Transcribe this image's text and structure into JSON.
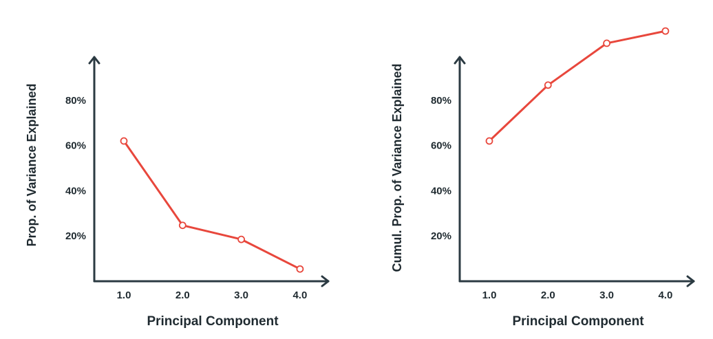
{
  "chart_data": [
    {
      "type": "line",
      "x": [
        1.0,
        2.0,
        3.0,
        4.0
      ],
      "x_tick_labels": [
        "1.0",
        "2.0",
        "3.0",
        "4.0"
      ],
      "series": [
        {
          "values": [
            0.62,
            0.247,
            0.185,
            0.054
          ]
        }
      ],
      "xlabel": "Principal Component",
      "ylabel": "Prop. of Variance Explained",
      "y_ticks": [
        0.2,
        0.4,
        0.6,
        0.8
      ],
      "y_tick_labels": [
        "20%",
        "40%",
        "60%",
        "80%"
      ],
      "xlim": [
        0.5,
        4.5
      ],
      "ylim": [
        0,
        1.0
      ],
      "grid": false,
      "color": "#e8473c"
    },
    {
      "type": "line",
      "x": [
        1.0,
        2.0,
        3.0,
        4.0
      ],
      "x_tick_labels": [
        "1.0",
        "2.0",
        "3.0",
        "4.0"
      ],
      "series": [
        {
          "values": [
            0.62,
            0.867,
            1.052,
            1.106
          ]
        }
      ],
      "xlabel": "Principal Component",
      "ylabel": "Cumul. Prop. of Variance Explained",
      "y_ticks": [
        0.2,
        0.4,
        0.6,
        0.8
      ],
      "y_tick_labels": [
        "20%",
        "40%",
        "60%",
        "80%"
      ],
      "xlim": [
        0.5,
        4.5
      ],
      "ylim": [
        0,
        1.0
      ],
      "grid": false,
      "color": "#e8473c"
    }
  ]
}
